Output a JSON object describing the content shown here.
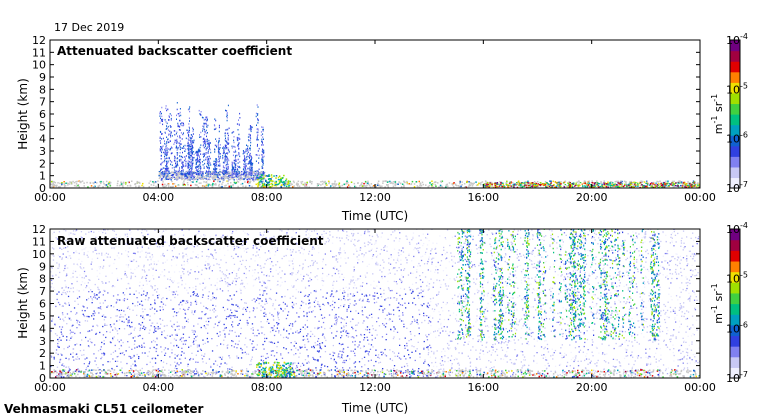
{
  "date": "17 Dec 2019",
  "footer": "Vehmasmaki CL51 ceilometer",
  "colorbar": {
    "ticks": [
      {
        "base": "10",
        "exp": "-4"
      },
      {
        "base": "10",
        "exp": "-5"
      },
      {
        "base": "10",
        "exp": "-6"
      },
      {
        "base": "10",
        "exp": "-7"
      }
    ],
    "label": {
      "base": "m",
      "exp1": "-1",
      "mid": " sr",
      "exp2": "-1"
    },
    "colors": [
      "#f0f0ff",
      "#c8c8f5",
      "#8080f0",
      "#3040e0",
      "#1060d0",
      "#00a0c0",
      "#00c080",
      "#40d040",
      "#a0e000",
      "#f0e000",
      "#ff8000",
      "#e00000",
      "#a00040",
      "#700080"
    ]
  },
  "chart_data": [
    {
      "type": "heatmap",
      "title": "Attenuated backscatter coefficient",
      "xlabel": "Time (UTC)",
      "ylabel": "Height (km)",
      "xticks": [
        "00:00",
        "04:00",
        "08:00",
        "12:00",
        "16:00",
        "20:00",
        "00:00"
      ],
      "yticks": [
        "0",
        "1",
        "2",
        "3",
        "4",
        "5",
        "6",
        "7",
        "8",
        "9",
        "10",
        "11",
        "12"
      ],
      "xlim_hours": [
        0,
        24
      ],
      "ylim_km": [
        0,
        12
      ],
      "color_scale": "log",
      "clim": [
        "10^-7",
        "10^-4"
      ],
      "features": [
        {
          "desc": "precipitation streaks",
          "t_start_h": 4.0,
          "t_end_h": 7.9,
          "top_km": 7.0
        },
        {
          "desc": "low cloud base",
          "t_start_h": 4.0,
          "t_end_h": 9.5,
          "height_km": 1.0
        },
        {
          "desc": "surface layer",
          "t_start_h": 0,
          "t_end_h": 24,
          "top_km": 0.5
        }
      ]
    },
    {
      "type": "heatmap",
      "title": "Raw attenuated backscatter coefficient",
      "xlabel": "Time (UTC)",
      "ylabel": "Height (km)",
      "xticks": [
        "00:00",
        "04:00",
        "08:00",
        "12:00",
        "16:00",
        "20:00",
        "00:00"
      ],
      "yticks": [
        "0",
        "1",
        "2",
        "3",
        "4",
        "5",
        "6",
        "7",
        "8",
        "9",
        "10",
        "11",
        "12"
      ],
      "xlim_hours": [
        0,
        24
      ],
      "ylim_km": [
        0,
        12
      ],
      "color_scale": "log",
      "clim": [
        "10^-7",
        "10^-4"
      ],
      "features": [
        {
          "desc": "noise field",
          "t_start_h": 0,
          "t_end_h": 24,
          "top_km": 12
        },
        {
          "desc": "high backscatter streaks",
          "t_start_h": 15.0,
          "t_end_h": 22.5,
          "top_km": 12
        }
      ]
    }
  ]
}
